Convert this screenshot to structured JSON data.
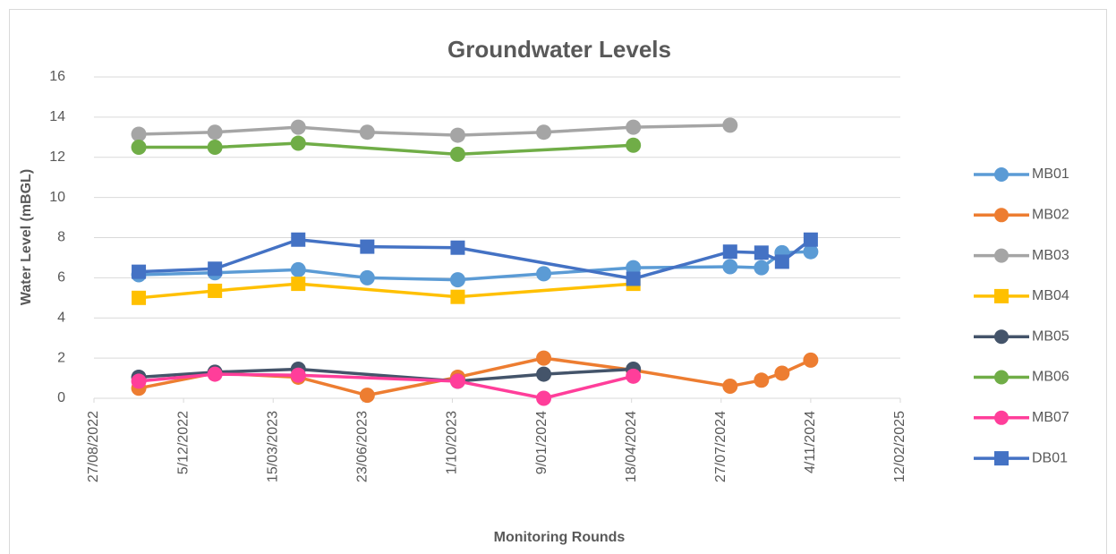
{
  "chart_data": {
    "type": "line",
    "title": "Groundwater Levels",
    "x_label": "Monitoring Rounds",
    "y_label": "Water Level (mBGL)",
    "xlim": [
      "2022-08-27",
      "2025-02-12"
    ],
    "xticks": [
      {
        "value": "2022-08-27",
        "label": "27/08/2022"
      },
      {
        "value": "2022-12-05",
        "label": "5/12/2022"
      },
      {
        "value": "2023-03-15",
        "label": "15/03/2023"
      },
      {
        "value": "2023-06-23",
        "label": "23/06/2023"
      },
      {
        "value": "2023-10-01",
        "label": "1/10/2023"
      },
      {
        "value": "2024-01-09",
        "label": "9/01/2024"
      },
      {
        "value": "2024-04-18",
        "label": "18/04/2024"
      },
      {
        "value": "2024-07-27",
        "label": "27/07/2024"
      },
      {
        "value": "2024-11-04",
        "label": "4/11/2024"
      },
      {
        "value": "2025-02-12",
        "label": "12/02/2025"
      }
    ],
    "ylim": [
      0,
      16
    ],
    "yticks": [
      0,
      2,
      4,
      6,
      8,
      10,
      12,
      14,
      16
    ],
    "grid": true,
    "legend": "right",
    "series": [
      {
        "name": "MB01",
        "color": "#5B9BD5",
        "marker": "circle",
        "x": [
          "2022-10-16",
          "2023-01-09",
          "2023-04-12",
          "2023-06-28",
          "2023-10-07",
          "2024-01-11",
          "2024-04-20",
          "2024-08-06",
          "2024-09-10",
          "2024-10-03",
          "2024-11-04"
        ],
        "values": [
          6.15,
          6.25,
          6.4,
          6.0,
          5.9,
          6.2,
          6.5,
          6.55,
          6.5,
          7.25,
          7.3
        ]
      },
      {
        "name": "MB02",
        "color": "#ED7D31",
        "marker": "circle",
        "x": [
          "2022-10-16",
          "2023-01-09",
          "2023-04-12",
          "2023-06-28",
          "2023-10-07",
          "2024-01-11",
          "2024-04-20",
          "2024-08-06",
          "2024-09-10",
          "2024-10-03",
          "2024-11-04"
        ],
        "values": [
          0.5,
          1.25,
          1.05,
          0.15,
          1.05,
          2.0,
          1.4,
          0.6,
          0.9,
          1.25,
          1.9
        ]
      },
      {
        "name": "MB03",
        "color": "#A5A5A5",
        "marker": "circle",
        "x": [
          "2022-10-16",
          "2023-01-09",
          "2023-04-12",
          "2023-06-28",
          "2023-10-07",
          "2024-01-11",
          "2024-04-20",
          "2024-08-06"
        ],
        "values": [
          13.15,
          13.25,
          13.5,
          13.25,
          13.1,
          13.25,
          13.5,
          13.6
        ]
      },
      {
        "name": "MB04",
        "color": "#FFC000",
        "marker": "square",
        "x": [
          "2022-10-16",
          "2023-01-09",
          "2023-04-12",
          "2023-10-07",
          "2024-04-20"
        ],
        "values": [
          5.0,
          5.35,
          5.7,
          5.05,
          5.7
        ]
      },
      {
        "name": "MB05",
        "color": "#44546A",
        "marker": "circle",
        "x": [
          "2022-10-16",
          "2023-01-09",
          "2023-04-12",
          "2023-10-07",
          "2024-01-11",
          "2024-04-20"
        ],
        "values": [
          1.05,
          1.3,
          1.45,
          0.85,
          1.2,
          1.45
        ]
      },
      {
        "name": "MB06",
        "color": "#70AD47",
        "marker": "circle",
        "x": [
          "2022-10-16",
          "2023-01-09",
          "2023-04-12",
          "2023-10-07",
          "2024-04-20"
        ],
        "values": [
          12.5,
          12.5,
          12.7,
          12.15,
          12.6
        ]
      },
      {
        "name": "MB07",
        "color": "#FF3E9A",
        "marker": "circle",
        "x": [
          "2022-10-16",
          "2023-01-09",
          "2023-04-12",
          "2023-10-07",
          "2024-01-11",
          "2024-04-20"
        ],
        "values": [
          0.85,
          1.2,
          1.15,
          0.85,
          0.0,
          1.1
        ]
      },
      {
        "name": "DB01",
        "color": "#4472C4",
        "marker": "square",
        "x": [
          "2022-10-16",
          "2023-01-09",
          "2023-04-12",
          "2023-06-28",
          "2023-10-07",
          "2024-04-20",
          "2024-08-06",
          "2024-09-10",
          "2024-10-03",
          "2024-11-04"
        ],
        "values": [
          6.3,
          6.45,
          7.9,
          7.55,
          7.5,
          5.95,
          7.3,
          7.25,
          6.8,
          7.9
        ]
      }
    ]
  }
}
